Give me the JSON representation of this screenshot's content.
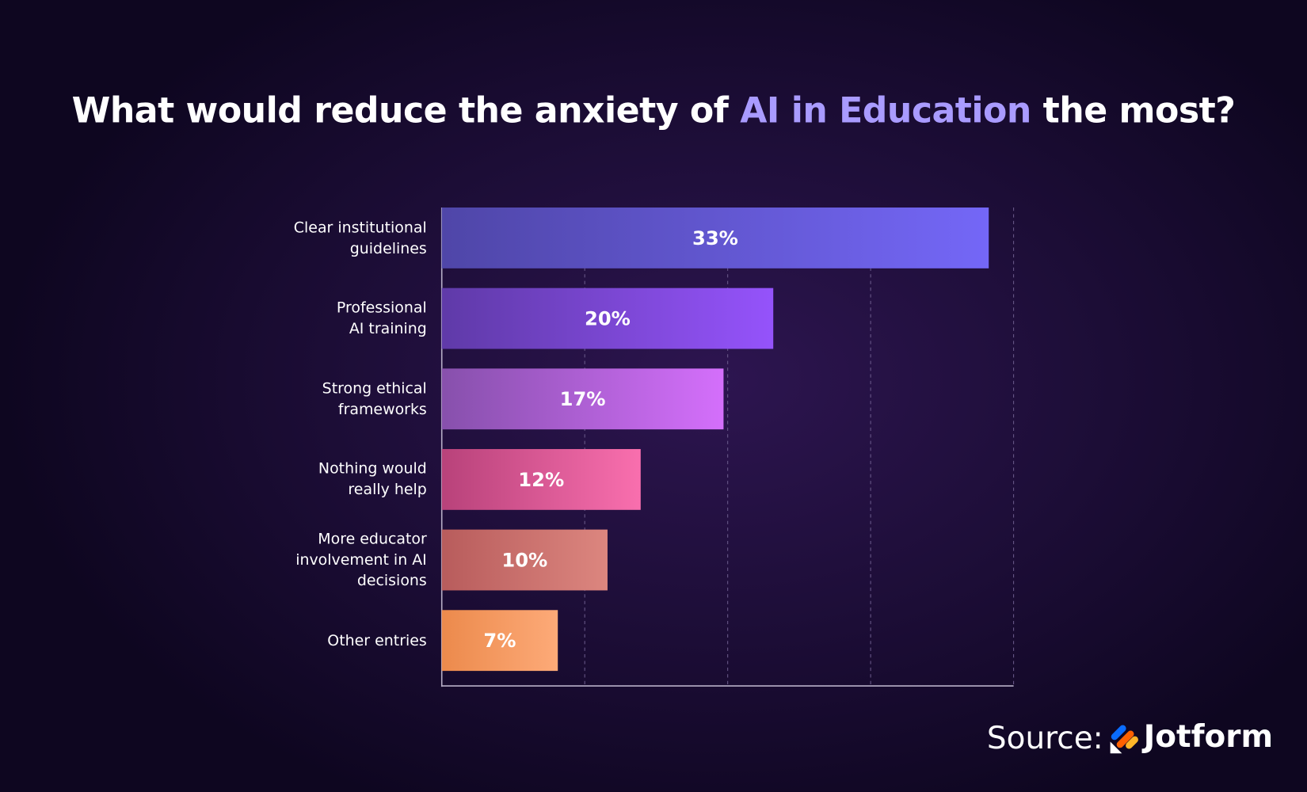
{
  "chart_data": {
    "type": "hbar",
    "title_parts": [
      "What would reduce the anxiety of ",
      "AI in Education",
      " the most?"
    ],
    "title_colors": [
      "#ffffff",
      "#a99bff",
      "#ffffff"
    ],
    "categories": [
      "Clear institutional\nguidelines",
      "Professional\nAI training",
      "Strong ethical\nframeworks",
      "Nothing would\nreally help",
      "More educator\ninvolvement in AI\ndecisions",
      "Other entries"
    ],
    "values": [
      33,
      20,
      17,
      12,
      10,
      7
    ],
    "value_labels": [
      "33%",
      "20%",
      "17%",
      "12%",
      "10%",
      "7%"
    ],
    "colors": [
      [
        "#4f46a8",
        "#7467f7"
      ],
      [
        "#5f3aa8",
        "#9553fb"
      ],
      [
        "#8750ac",
        "#d46ffb"
      ],
      [
        "#b8427a",
        "#f96fae"
      ],
      [
        "#b85c5c",
        "#dc867f"
      ],
      [
        "#ec8a4c",
        "#fdaa78"
      ]
    ],
    "xlim": [
      0,
      34.5
    ],
    "xticks": [
      8.625,
      17.25,
      25.875,
      34.5
    ],
    "grid": true,
    "source": "Source:",
    "brand": "Jotform"
  }
}
